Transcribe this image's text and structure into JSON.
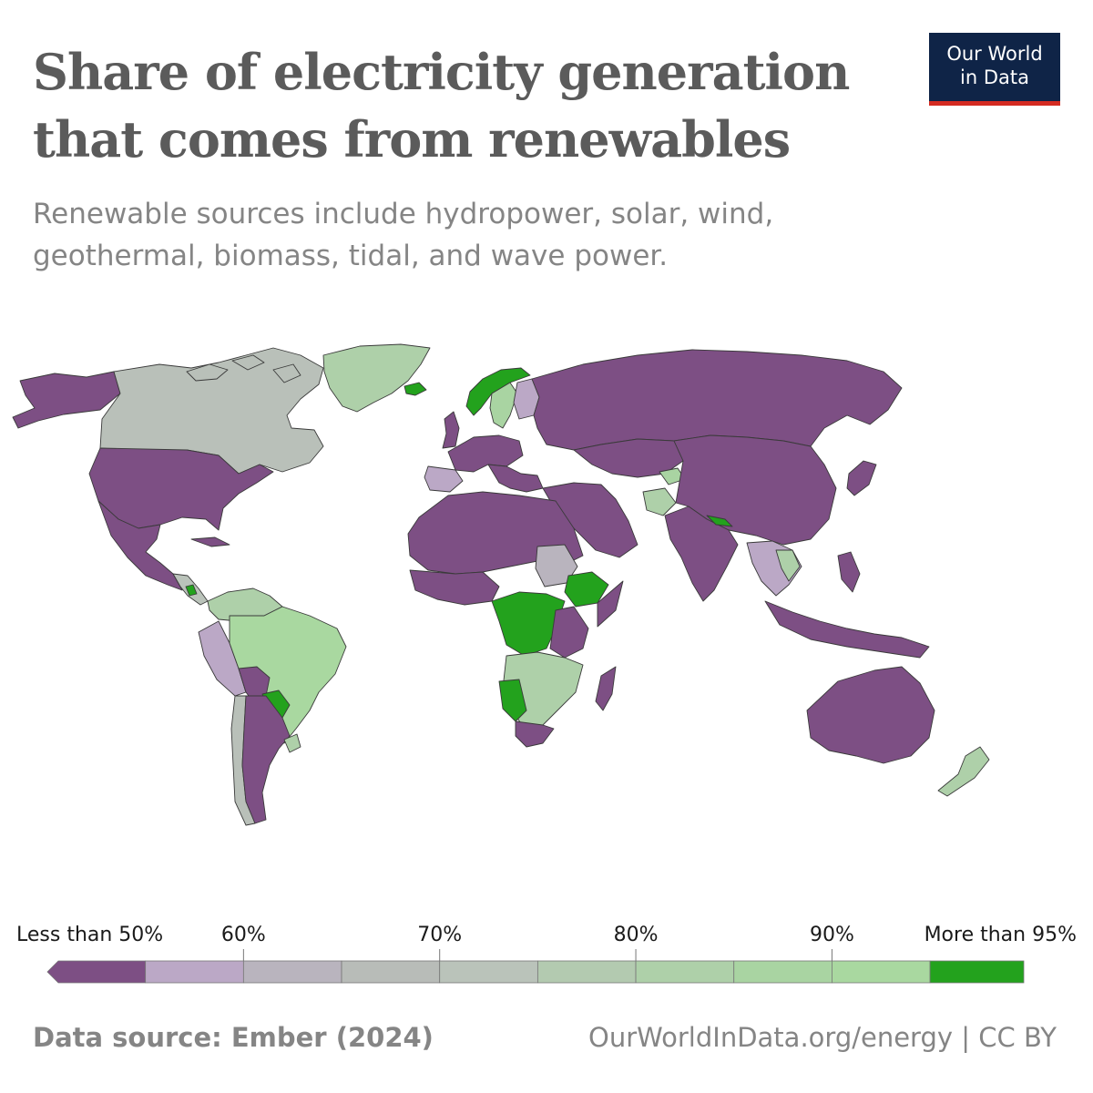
{
  "title": "Share of electricity generation that comes from renewables",
  "subtitle": "Renewable sources include hydropower, solar, wind, geothermal, biomass, tidal, and wave power.",
  "logo": {
    "line1": "Our World",
    "line2": "in Data"
  },
  "legend": {
    "bins": [
      {
        "label": "Less than 50%",
        "color": "#7d4f84"
      },
      {
        "label": "",
        "color": "#bba8c6"
      },
      {
        "label": "60%",
        "color": "#b9b4be"
      },
      {
        "label": "",
        "color": "#b8bcb8"
      },
      {
        "label": "70%",
        "color": "#bac3ba"
      },
      {
        "label": "",
        "color": "#b3cab0"
      },
      {
        "label": "80%",
        "color": "#aed0a9"
      },
      {
        "label": "",
        "color": "#a9d4a2"
      },
      {
        "label": "90%",
        "color": "#a9d8a0"
      },
      {
        "label": "More than 95%",
        "color": "#23a21d"
      }
    ]
  },
  "regions": [
    {
      "name": "Canada",
      "category": "70%"
    },
    {
      "name": "Greenland",
      "category": "80%"
    },
    {
      "name": "Brazil",
      "category": "90%"
    },
    {
      "name": "Paraguay",
      "category": "More than 95%"
    },
    {
      "name": "Ethiopia",
      "category": "More than 95%"
    },
    {
      "name": "DR Congo",
      "category": "More than 95%"
    },
    {
      "name": "Namibia",
      "category": "More than 95%"
    },
    {
      "name": "Norway",
      "category": "More than 95%"
    },
    {
      "name": "Iceland",
      "category": "More than 95%"
    },
    {
      "name": "Nepal",
      "category": "More than 95%"
    },
    {
      "name": "New Zealand",
      "category": "80%"
    },
    {
      "name": "Sudan",
      "category": "60%"
    },
    {
      "name": "Afghanistan",
      "category": "80%"
    },
    {
      "name": "Spain",
      "category": "60%"
    }
  ],
  "footer": {
    "source": "Data source: Ember (2024)",
    "url": "OurWorldInData.org/energy | CC BY"
  }
}
